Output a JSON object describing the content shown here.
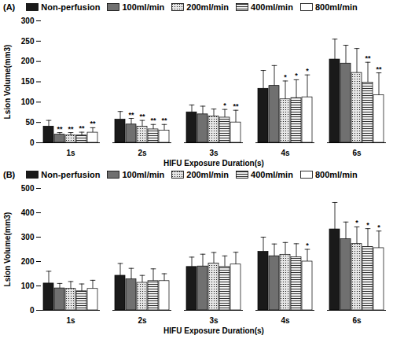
{
  "chart_data": [
    {
      "type": "bar",
      "title": "(A)",
      "x_label": "HIFU Exposure Duration(s)",
      "y_label": "Lsion Volume(mm3)",
      "categories": [
        "1s",
        "2s",
        "3s",
        "4s",
        "6s"
      ],
      "ylim": [
        0,
        300
      ],
      "yticks": [
        0,
        50,
        100,
        150,
        200,
        250,
        300
      ],
      "legend": "top",
      "series": [
        {
          "name": "Non-perfusion",
          "color": "#1a1a1a",
          "values": [
            40,
            57,
            75,
            133,
            205
          ],
          "errors": [
            15,
            20,
            18,
            45,
            50
          ],
          "significance": [
            null,
            null,
            null,
            null,
            null
          ]
        },
        {
          "name": "100ml/min",
          "color": "#707070",
          "values": [
            20,
            45,
            70,
            140,
            195
          ],
          "errors": [
            5,
            15,
            20,
            50,
            45
          ],
          "significance": [
            "**",
            "**",
            null,
            null,
            null
          ]
        },
        {
          "name": "200ml/min",
          "color": "#e6e6e6",
          "values": [
            18,
            40,
            65,
            107,
            172
          ],
          "errors": [
            7,
            15,
            18,
            45,
            60
          ],
          "significance": [
            "**",
            "**",
            null,
            "*",
            null
          ]
        },
        {
          "name": "400ml/min",
          "color": "#f0f0f0",
          "values": [
            18,
            33,
            62,
            110,
            148
          ],
          "errors": [
            8,
            12,
            20,
            45,
            50
          ],
          "significance": [
            "**",
            "**",
            "*",
            "*",
            "**"
          ]
        },
        {
          "name": "800ml/min",
          "color": "#ffffff",
          "values": [
            25,
            30,
            50,
            112,
            117
          ],
          "errors": [
            12,
            15,
            30,
            55,
            55
          ],
          "significance": [
            "**",
            "**",
            "**",
            "*",
            "**"
          ]
        }
      ]
    },
    {
      "type": "bar",
      "title": "(B)",
      "x_label": "HIFU Exposure Duration(s)",
      "y_label": "Lsion Volume(mm3)",
      "categories": [
        "1s",
        "2s",
        "3s",
        "4s",
        "6s"
      ],
      "ylim": [
        0,
        500
      ],
      "yticks": [
        0,
        100,
        200,
        300,
        400,
        500
      ],
      "legend": "top",
      "series": [
        {
          "name": "Non-perfusion",
          "color": "#1a1a1a",
          "values": [
            110,
            142,
            178,
            240,
            332
          ],
          "errors": [
            50,
            50,
            40,
            60,
            110
          ],
          "significance": [
            null,
            null,
            null,
            null,
            null
          ]
        },
        {
          "name": "100ml/min",
          "color": "#707070",
          "values": [
            90,
            127,
            180,
            222,
            292
          ],
          "errors": [
            20,
            45,
            50,
            50,
            70
          ],
          "significance": [
            null,
            null,
            null,
            null,
            null
          ]
        },
        {
          "name": "200ml/min",
          "color": "#e6e6e6",
          "values": [
            88,
            113,
            192,
            228,
            272
          ],
          "errors": [
            30,
            30,
            45,
            50,
            70
          ],
          "significance": [
            null,
            null,
            null,
            null,
            "*"
          ]
        },
        {
          "name": "400ml/min",
          "color": "#f0f0f0",
          "values": [
            78,
            120,
            178,
            218,
            260
          ],
          "errors": [
            30,
            50,
            45,
            55,
            75
          ],
          "significance": [
            null,
            null,
            null,
            null,
            "*"
          ]
        },
        {
          "name": "800ml/min",
          "color": "#ffffff",
          "values": [
            88,
            120,
            188,
            200,
            255
          ],
          "errors": [
            35,
            30,
            50,
            50,
            70
          ],
          "significance": [
            null,
            null,
            null,
            "*",
            "*"
          ]
        }
      ]
    }
  ]
}
